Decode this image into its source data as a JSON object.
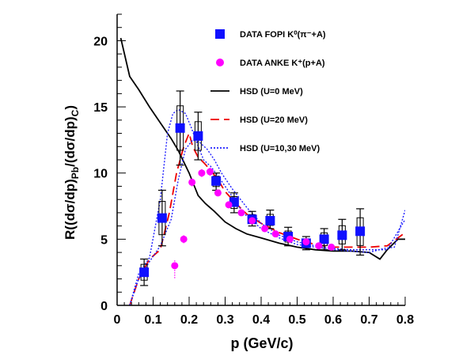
{
  "chart_data": {
    "type": "scatter",
    "xlabel": "p (GeV/c)",
    "ylabel_parts": {
      "main": "R((dσ/dp)",
      "sub1": "Pb",
      "mid": "/(dσ/dp)",
      "sub2": "C",
      "end": ")"
    },
    "xlim": [
      0,
      0.8
    ],
    "ylim": [
      0,
      22
    ],
    "x_ticks": [
      "0",
      "0.1",
      "0.2",
      "0.3",
      "0.4",
      "0.5",
      "0.6",
      "0.7",
      "0.8"
    ],
    "y_ticks": [
      "0",
      "5",
      "10",
      "15",
      "20"
    ],
    "grid": false,
    "legend_placement": "top-right",
    "legend": [
      {
        "label": "DATA FOPI K⁰(π⁻+A)",
        "marker": "square",
        "color": "#1010ff"
      },
      {
        "label": "DATA ANKE K⁺(p+A)",
        "marker": "circle",
        "color": "#ff00ff"
      },
      {
        "label": "HSD (U=0 MeV)",
        "line": "solid",
        "color": "#000000"
      },
      {
        "label": "HSD (U=20 MeV)",
        "line": "dashed",
        "color": "#ee0000"
      },
      {
        "label": "HSD (U=10,30 MeV)",
        "line": "dotted",
        "color": "#2020ff"
      }
    ],
    "series": [
      {
        "name": "DATA FOPI K⁰(π⁻+A)",
        "kind": "points",
        "marker": "square",
        "color": "#1010ff",
        "points": [
          {
            "x": 0.075,
            "y": 2.5,
            "ylo": 1.5,
            "yhi": 3.5
          },
          {
            "x": 0.125,
            "y": 6.6,
            "ylo": 4.5,
            "yhi": 8.7
          },
          {
            "x": 0.175,
            "y": 13.4,
            "ylo": 10.6,
            "yhi": 16.2
          },
          {
            "x": 0.225,
            "y": 12.8,
            "ylo": 11.0,
            "yhi": 14.6
          },
          {
            "x": 0.275,
            "y": 9.4,
            "ylo": 8.7,
            "yhi": 10.0
          },
          {
            "x": 0.325,
            "y": 7.8,
            "ylo": 7.0,
            "yhi": 8.5
          },
          {
            "x": 0.375,
            "y": 6.5,
            "ylo": 6.0,
            "yhi": 7.1
          },
          {
            "x": 0.425,
            "y": 6.4,
            "ylo": 5.8,
            "yhi": 7.2
          },
          {
            "x": 0.475,
            "y": 5.2,
            "ylo": 4.5,
            "yhi": 5.9
          },
          {
            "x": 0.525,
            "y": 4.7,
            "ylo": 4.2,
            "yhi": 5.2
          },
          {
            "x": 0.575,
            "y": 5.0,
            "ylo": 4.2,
            "yhi": 5.8
          },
          {
            "x": 0.625,
            "y": 5.3,
            "ylo": 4.2,
            "yhi": 6.5
          },
          {
            "x": 0.675,
            "y": 5.6,
            "ylo": 3.8,
            "yhi": 7.3
          }
        ]
      },
      {
        "name": "DATA ANKE K⁺(p+A)",
        "kind": "points",
        "marker": "circle",
        "color": "#ff00ff",
        "points": [
          {
            "x": 0.16,
            "y": 3.0,
            "ylo": 2.0,
            "yhi": 3.4
          },
          {
            "x": 0.185,
            "y": 5.0,
            "ylo": 4.7,
            "yhi": 5.3
          },
          {
            "x": 0.208,
            "y": 9.3,
            "ylo": 9.0,
            "yhi": 9.6
          },
          {
            "x": 0.235,
            "y": 10.0,
            "ylo": 9.7,
            "yhi": 10.3
          },
          {
            "x": 0.258,
            "y": 10.1,
            "ylo": 9.8,
            "yhi": 10.4
          },
          {
            "x": 0.28,
            "y": 8.5,
            "ylo": 8.3,
            "yhi": 8.7
          },
          {
            "x": 0.31,
            "y": 7.6,
            "ylo": 7.4,
            "yhi": 7.8
          },
          {
            "x": 0.345,
            "y": 7.0,
            "ylo": 6.8,
            "yhi": 7.2
          },
          {
            "x": 0.375,
            "y": 6.4,
            "ylo": 6.2,
            "yhi": 6.6
          },
          {
            "x": 0.41,
            "y": 5.8,
            "ylo": 5.6,
            "yhi": 6.0
          },
          {
            "x": 0.44,
            "y": 5.4,
            "ylo": 5.2,
            "yhi": 5.6
          },
          {
            "x": 0.48,
            "y": 5.0,
            "ylo": 4.8,
            "yhi": 5.2
          },
          {
            "x": 0.525,
            "y": 4.8,
            "ylo": 4.6,
            "yhi": 5.0
          },
          {
            "x": 0.56,
            "y": 4.5,
            "ylo": 4.3,
            "yhi": 4.7
          },
          {
            "x": 0.595,
            "y": 4.4,
            "ylo": 4.2,
            "yhi": 4.6
          }
        ]
      },
      {
        "name": "HSD (U=0 MeV)",
        "kind": "line",
        "style": "solid",
        "color": "#000000",
        "x": [
          0.01,
          0.035,
          0.06,
          0.09,
          0.12,
          0.15,
          0.17,
          0.2,
          0.225,
          0.245,
          0.27,
          0.3,
          0.33,
          0.36,
          0.4,
          0.45,
          0.5,
          0.55,
          0.6,
          0.65,
          0.7,
          0.73,
          0.75,
          0.78,
          0.8
        ],
        "y": [
          20.2,
          17.3,
          16.3,
          15.0,
          13.8,
          12.6,
          11.7,
          10.0,
          8.3,
          7.7,
          7.1,
          6.3,
          5.8,
          5.4,
          5.1,
          4.7,
          4.4,
          4.2,
          4.1,
          4.1,
          4.0,
          3.5,
          4.2,
          5.0,
          5.0
        ]
      },
      {
        "name": "HSD (U=20 MeV)",
        "kind": "line",
        "style": "dashed",
        "color": "#ee0000",
        "x": [
          0.035,
          0.06,
          0.09,
          0.12,
          0.145,
          0.165,
          0.185,
          0.2,
          0.21,
          0.225,
          0.24,
          0.26,
          0.28,
          0.3,
          0.33,
          0.36,
          0.4,
          0.45,
          0.5,
          0.55,
          0.6,
          0.65,
          0.7,
          0.75,
          0.8
        ],
        "y": [
          0,
          2.0,
          3.5,
          4.2,
          7.0,
          10.0,
          12.0,
          13.0,
          12.0,
          11.2,
          10.8,
          10.2,
          9.5,
          8.6,
          7.7,
          6.9,
          6.2,
          5.5,
          5.0,
          4.6,
          4.4,
          4.4,
          4.4,
          4.5,
          5.5
        ]
      },
      {
        "name": "HSD (U=10,30 MeV)",
        "kind": "line",
        "style": "dotted",
        "color": "#2020ff",
        "x": [
          0.035,
          0.06,
          0.09,
          0.12,
          0.14,
          0.155,
          0.17,
          0.19,
          0.205,
          0.22,
          0.24,
          0.26,
          0.28,
          0.31,
          0.35,
          0.4,
          0.45,
          0.5,
          0.55,
          0.6,
          0.65,
          0.7,
          0.74,
          0.77,
          0.8
        ],
        "y": [
          0,
          2.4,
          3.6,
          8.0,
          13.0,
          14.5,
          14.8,
          14.5,
          13.5,
          12.4,
          11.0,
          10.5,
          9.8,
          8.6,
          7.0,
          5.8,
          5.1,
          4.6,
          4.4,
          4.2,
          4.1,
          4.0,
          4.3,
          4.4,
          7.2
        ]
      },
      {
        "name": "HSD (U=10,30 MeV)",
        "kind": "line",
        "style": "dotted",
        "color": "#2020ff",
        "x": [
          0.035,
          0.06,
          0.09,
          0.12,
          0.15,
          0.17,
          0.19,
          0.21,
          0.23,
          0.25,
          0.27,
          0.29,
          0.32,
          0.36,
          0.4,
          0.45,
          0.5,
          0.55,
          0.6,
          0.65,
          0.7,
          0.75,
          0.8
        ],
        "y": [
          0,
          2.0,
          3.3,
          4.5,
          6.5,
          9.5,
          11.8,
          12.5,
          12.3,
          11.8,
          11.0,
          10.0,
          8.8,
          7.4,
          6.2,
          5.3,
          4.8,
          4.5,
          4.3,
          4.2,
          4.2,
          4.2,
          6.5
        ]
      }
    ]
  }
}
